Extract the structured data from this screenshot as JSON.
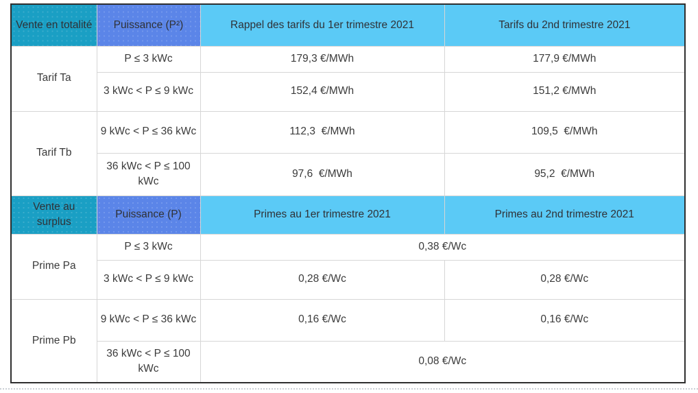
{
  "table": {
    "sections": [
      {
        "header": {
          "group_label": "Vente en totalité",
          "power_label": "Puissance (P²)",
          "col_q1": "Rappel des tarifs du 1er trimestre 2021",
          "col_q2": "Tarifs du 2nd trimestre 2021"
        },
        "groups": [
          {
            "label": "Tarif Ta",
            "rows": [
              {
                "power": "P ≤ 3 kWc",
                "q1": "179,3 €/MWh",
                "q2": "177,9 €/MWh"
              },
              {
                "power": "3 kWc < P ≤ 9 kWc",
                "q1": "152,4 €/MWh",
                "q2": "151,2 €/MWh"
              }
            ]
          },
          {
            "label": "Tarif Tb",
            "rows": [
              {
                "power": "9 kWc < P ≤ 36 kWc",
                "q1": "112,3  €/MWh",
                "q2": "109,5  €/MWh"
              },
              {
                "power": "36 kWc < P ≤ 100 kWc",
                "q1": "97,6  €/MWh",
                "q2": "95,2  €/MWh"
              }
            ]
          }
        ]
      },
      {
        "header": {
          "group_label": "Vente au surplus",
          "power_label": "Puissance (P)",
          "col_q1": "Primes au 1er trimestre 2021",
          "col_q2": "Primes au 2nd trimestre 2021"
        },
        "groups": [
          {
            "label": "Prime Pa",
            "rows": [
              {
                "power": "P ≤ 3 kWc",
                "merged_value": "0,38 €/Wc"
              },
              {
                "power": "3 kWc < P ≤ 9 kWc",
                "q1": "0,28 €/Wc",
                "q2": "0,28 €/Wc"
              }
            ]
          },
          {
            "label": "Prime Pb",
            "rows": [
              {
                "power": "9 kWc < P ≤ 36 kWc",
                "q1": "0,16 €/Wc",
                "q2": "0,16 €/Wc"
              },
              {
                "power": "36 kWc < P ≤ 100 kWc",
                "merged_value": "0,08 €/Wc"
              }
            ]
          }
        ]
      }
    ],
    "colors": {
      "teal_header": "#1a9fc4",
      "periwinkle_header": "#5b85e8",
      "light_blue_header": "#5bcaf6",
      "grid_line": "#d6d6d6",
      "outer_border": "#2e2e2e",
      "text": "#3a3a3a"
    }
  }
}
